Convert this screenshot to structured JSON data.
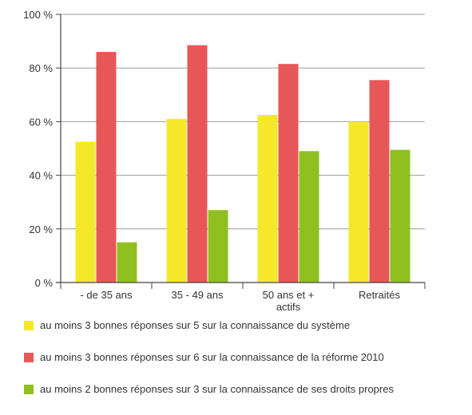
{
  "chart_data": {
    "type": "bar",
    "categories": [
      [
        "- de 35 ans"
      ],
      [
        "35 - 49 ans"
      ],
      [
        "50 ans et +",
        "actifs"
      ],
      [
        "Retraités"
      ]
    ],
    "series": [
      {
        "name": "au moins 3 bonnes réponses sur 5 sur la connaissance du système",
        "color": "#f5e82a",
        "values": [
          52.5,
          61,
          62.5,
          60
        ]
      },
      {
        "name": "au moins 3 bonnes réponses sur 6 sur la connaissance de la réforme 2010",
        "color": "#e85757",
        "values": [
          86,
          88.5,
          81.5,
          75.5
        ]
      },
      {
        "name": "au moins 2 bonnes réponses sur 3 sur la connaissance de ses droits propres",
        "color": "#8fc01f",
        "values": [
          15,
          27,
          49,
          49.5
        ]
      }
    ],
    "ylim": [
      0,
      100
    ],
    "yticks": [
      "0 %",
      "20 %",
      "40 %",
      "60 %",
      "80 %",
      "100 %"
    ],
    "ytick_values": [
      0,
      20,
      40,
      60,
      80,
      100
    ],
    "grid": true,
    "legend_position": "bottom",
    "xlabel": "",
    "ylabel": ""
  }
}
